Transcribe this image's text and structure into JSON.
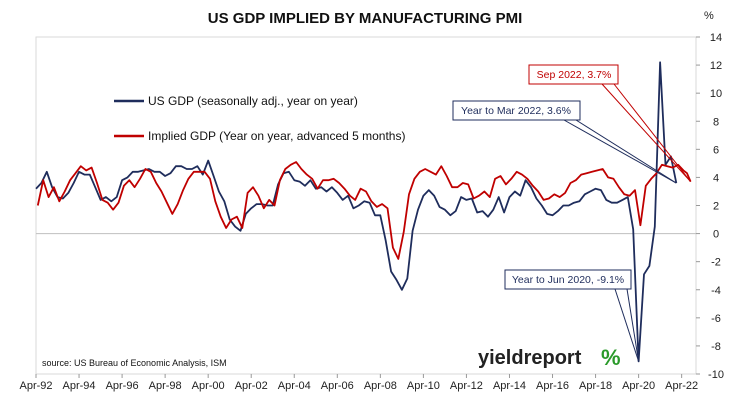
{
  "chart_data": {
    "type": "line",
    "title": "US GDP IMPLIED BY MANUFACTURING PMI",
    "y_unit": "%",
    "ylim": [
      -10,
      14
    ],
    "yticks": [
      14,
      12,
      10,
      8,
      6,
      4,
      2,
      0,
      -2,
      -4,
      -6,
      -8,
      -10
    ],
    "xticks": [
      "Apr-92",
      "Apr-94",
      "Apr-96",
      "Apr-98",
      "Apr-00",
      "Apr-02",
      "Apr-04",
      "Apr-06",
      "Apr-08",
      "Apr-10",
      "Apr-12",
      "Apr-14",
      "Apr-16",
      "Apr-18",
      "Apr-20",
      "Apr-22"
    ],
    "x_start": "1992-04",
    "x_end": "2022-12",
    "grid": false,
    "legend_position": "top-left",
    "source": "source: US Bureau of Economic Analysis, ISM",
    "brand": "yieldreport",
    "brand_symbol": "%",
    "series": [
      {
        "name": "US GDP (seasonally adj., year on year)",
        "color": "#1f2d5c",
        "points": [
          [
            "1992-04",
            3.2
          ],
          [
            "1992-07",
            3.6
          ],
          [
            "1992-10",
            4.4
          ],
          [
            "1993-01",
            3.3
          ],
          [
            "1993-04",
            2.6
          ],
          [
            "1993-07",
            2.5
          ],
          [
            "1993-10",
            2.9
          ],
          [
            "1994-01",
            3.6
          ],
          [
            "1994-04",
            4.4
          ],
          [
            "1994-07",
            4.2
          ],
          [
            "1994-10",
            4.2
          ],
          [
            "1995-01",
            3.3
          ],
          [
            "1995-04",
            2.4
          ],
          [
            "1995-07",
            2.6
          ],
          [
            "1995-10",
            2.3
          ],
          [
            "1996-01",
            2.6
          ],
          [
            "1996-04",
            3.8
          ],
          [
            "1996-07",
            4.0
          ],
          [
            "1996-10",
            4.4
          ],
          [
            "1997-01",
            4.4
          ],
          [
            "1997-04",
            4.5
          ],
          [
            "1997-07",
            4.6
          ],
          [
            "1997-10",
            4.4
          ],
          [
            "1998-01",
            4.4
          ],
          [
            "1998-04",
            4.1
          ],
          [
            "1998-07",
            4.3
          ],
          [
            "1998-10",
            4.8
          ],
          [
            "1999-01",
            4.8
          ],
          [
            "1999-04",
            4.6
          ],
          [
            "1999-07",
            4.6
          ],
          [
            "1999-10",
            4.8
          ],
          [
            "2000-01",
            4.2
          ],
          [
            "2000-04",
            5.2
          ],
          [
            "2000-07",
            4.1
          ],
          [
            "2000-10",
            3.0
          ],
          [
            "2001-01",
            2.3
          ],
          [
            "2001-04",
            1.0
          ],
          [
            "2001-07",
            0.5
          ],
          [
            "2001-10",
            0.2
          ],
          [
            "2002-01",
            1.4
          ],
          [
            "2002-04",
            1.8
          ],
          [
            "2002-07",
            2.1
          ],
          [
            "2002-10",
            2.1
          ],
          [
            "2003-01",
            2.0
          ],
          [
            "2003-04",
            2.0
          ],
          [
            "2003-07",
            3.5
          ],
          [
            "2003-10",
            4.3
          ],
          [
            "2004-01",
            4.4
          ],
          [
            "2004-04",
            3.8
          ],
          [
            "2004-07",
            3.7
          ],
          [
            "2004-10",
            3.4
          ],
          [
            "2005-01",
            3.8
          ],
          [
            "2005-04",
            3.2
          ],
          [
            "2005-07",
            3.3
          ],
          [
            "2005-10",
            3.0
          ],
          [
            "2006-01",
            3.3
          ],
          [
            "2006-04",
            2.9
          ],
          [
            "2006-07",
            2.4
          ],
          [
            "2006-10",
            2.7
          ],
          [
            "2007-01",
            1.8
          ],
          [
            "2007-04",
            2.0
          ],
          [
            "2007-07",
            2.3
          ],
          [
            "2007-10",
            2.2
          ],
          [
            "2008-01",
            1.3
          ],
          [
            "2008-04",
            1.3
          ],
          [
            "2008-07",
            -0.5
          ],
          [
            "2008-10",
            -2.7
          ],
          [
            "2009-01",
            -3.3
          ],
          [
            "2009-04",
            -4.0
          ],
          [
            "2009-07",
            -3.2
          ],
          [
            "2009-10",
            0.2
          ],
          [
            "2010-01",
            1.7
          ],
          [
            "2010-04",
            2.7
          ],
          [
            "2010-07",
            3.1
          ],
          [
            "2010-10",
            2.7
          ],
          [
            "2011-01",
            1.9
          ],
          [
            "2011-04",
            1.7
          ],
          [
            "2011-07",
            1.3
          ],
          [
            "2011-10",
            1.6
          ],
          [
            "2012-01",
            2.6
          ],
          [
            "2012-04",
            2.4
          ],
          [
            "2012-07",
            2.5
          ],
          [
            "2012-10",
            1.5
          ],
          [
            "2013-01",
            1.6
          ],
          [
            "2013-04",
            1.2
          ],
          [
            "2013-07",
            1.7
          ],
          [
            "2013-10",
            2.6
          ],
          [
            "2014-01",
            1.5
          ],
          [
            "2014-04",
            2.6
          ],
          [
            "2014-07",
            3.0
          ],
          [
            "2014-10",
            2.7
          ],
          [
            "2015-01",
            3.8
          ],
          [
            "2015-04",
            3.3
          ],
          [
            "2015-07",
            2.5
          ],
          [
            "2015-10",
            2.0
          ],
          [
            "2016-01",
            1.4
          ],
          [
            "2016-04",
            1.3
          ],
          [
            "2016-07",
            1.6
          ],
          [
            "2016-10",
            2.0
          ],
          [
            "2017-01",
            2.0
          ],
          [
            "2017-04",
            2.2
          ],
          [
            "2017-07",
            2.3
          ],
          [
            "2017-10",
            2.8
          ],
          [
            "2018-01",
            3.0
          ],
          [
            "2018-04",
            3.2
          ],
          [
            "2018-07",
            3.1
          ],
          [
            "2018-10",
            2.4
          ],
          [
            "2019-01",
            2.2
          ],
          [
            "2019-04",
            2.2
          ],
          [
            "2019-07",
            2.4
          ],
          [
            "2019-10",
            2.6
          ],
          [
            "2020-01",
            0.3
          ],
          [
            "2020-04",
            -9.1
          ],
          [
            "2020-07",
            -2.9
          ],
          [
            "2020-10",
            -2.3
          ],
          [
            "2021-01",
            0.5
          ],
          [
            "2021-04",
            12.2
          ],
          [
            "2021-07",
            4.9
          ],
          [
            "2021-10",
            5.5
          ],
          [
            "2022-01",
            3.6
          ]
        ]
      },
      {
        "name": "Implied GDP (Year on year, advanced 5 months)",
        "color": "#c00000",
        "points": [
          [
            "1992-05",
            2.0
          ],
          [
            "1992-08",
            3.8
          ],
          [
            "1992-11",
            2.6
          ],
          [
            "1993-02",
            3.3
          ],
          [
            "1993-05",
            2.3
          ],
          [
            "1993-08",
            3.0
          ],
          [
            "1993-11",
            3.8
          ],
          [
            "1994-02",
            4.3
          ],
          [
            "1994-05",
            4.8
          ],
          [
            "1994-08",
            4.5
          ],
          [
            "1994-11",
            4.7
          ],
          [
            "1995-02",
            3.6
          ],
          [
            "1995-05",
            2.4
          ],
          [
            "1995-08",
            2.2
          ],
          [
            "1995-11",
            1.7
          ],
          [
            "1996-02",
            2.2
          ],
          [
            "1996-05",
            3.4
          ],
          [
            "1996-08",
            3.8
          ],
          [
            "1996-11",
            3.3
          ],
          [
            "1997-02",
            3.9
          ],
          [
            "1997-05",
            4.6
          ],
          [
            "1997-08",
            4.4
          ],
          [
            "1997-11",
            3.6
          ],
          [
            "1998-02",
            3.0
          ],
          [
            "1998-05",
            2.2
          ],
          [
            "1998-08",
            1.4
          ],
          [
            "1998-11",
            2.1
          ],
          [
            "1999-02",
            3.1
          ],
          [
            "1999-05",
            3.9
          ],
          [
            "1999-08",
            4.4
          ],
          [
            "1999-11",
            4.4
          ],
          [
            "2000-02",
            4.4
          ],
          [
            "2000-05",
            3.9
          ],
          [
            "2000-08",
            2.3
          ],
          [
            "2000-11",
            1.2
          ],
          [
            "2001-02",
            0.4
          ],
          [
            "2001-05",
            1.0
          ],
          [
            "2001-08",
            1.2
          ],
          [
            "2001-11",
            0.4
          ],
          [
            "2002-02",
            2.9
          ],
          [
            "2002-05",
            3.3
          ],
          [
            "2002-08",
            2.7
          ],
          [
            "2002-11",
            1.8
          ],
          [
            "2003-02",
            2.4
          ],
          [
            "2003-05",
            2.0
          ],
          [
            "2003-08",
            3.8
          ],
          [
            "2003-11",
            4.6
          ],
          [
            "2004-02",
            4.9
          ],
          [
            "2004-05",
            5.1
          ],
          [
            "2004-08",
            4.6
          ],
          [
            "2004-11",
            4.2
          ],
          [
            "2005-02",
            3.9
          ],
          [
            "2005-05",
            3.2
          ],
          [
            "2005-08",
            3.8
          ],
          [
            "2005-11",
            3.8
          ],
          [
            "2006-02",
            3.9
          ],
          [
            "2006-05",
            3.6
          ],
          [
            "2006-08",
            3.2
          ],
          [
            "2006-11",
            2.7
          ],
          [
            "2007-02",
            2.4
          ],
          [
            "2007-05",
            3.2
          ],
          [
            "2007-08",
            3.0
          ],
          [
            "2007-11",
            2.3
          ],
          [
            "2008-02",
            1.9
          ],
          [
            "2008-05",
            2.1
          ],
          [
            "2008-08",
            1.8
          ],
          [
            "2008-11",
            -1.0
          ],
          [
            "2009-02",
            -1.8
          ],
          [
            "2009-05",
            0.1
          ],
          [
            "2009-08",
            2.8
          ],
          [
            "2009-11",
            3.9
          ],
          [
            "2010-02",
            4.4
          ],
          [
            "2010-05",
            4.6
          ],
          [
            "2010-08",
            4.4
          ],
          [
            "2010-11",
            4.2
          ],
          [
            "2011-02",
            4.8
          ],
          [
            "2011-05",
            4.1
          ],
          [
            "2011-08",
            3.3
          ],
          [
            "2011-11",
            3.3
          ],
          [
            "2012-02",
            3.6
          ],
          [
            "2012-05",
            3.5
          ],
          [
            "2012-08",
            2.5
          ],
          [
            "2012-11",
            2.7
          ],
          [
            "2013-02",
            3.0
          ],
          [
            "2013-05",
            2.6
          ],
          [
            "2013-08",
            3.9
          ],
          [
            "2013-11",
            4.1
          ],
          [
            "2014-02",
            3.5
          ],
          [
            "2014-05",
            3.9
          ],
          [
            "2014-08",
            4.4
          ],
          [
            "2014-11",
            4.2
          ],
          [
            "2015-02",
            3.9
          ],
          [
            "2015-05",
            3.4
          ],
          [
            "2015-08",
            3.0
          ],
          [
            "2015-11",
            2.4
          ],
          [
            "2016-02",
            2.5
          ],
          [
            "2016-05",
            2.8
          ],
          [
            "2016-08",
            2.6
          ],
          [
            "2016-11",
            2.9
          ],
          [
            "2017-02",
            3.6
          ],
          [
            "2017-05",
            3.8
          ],
          [
            "2017-08",
            4.2
          ],
          [
            "2017-11",
            4.3
          ],
          [
            "2018-02",
            4.4
          ],
          [
            "2018-05",
            4.5
          ],
          [
            "2018-08",
            4.6
          ],
          [
            "2018-11",
            4.0
          ],
          [
            "2019-02",
            3.9
          ],
          [
            "2019-05",
            3.3
          ],
          [
            "2019-08",
            2.8
          ],
          [
            "2019-11",
            2.7
          ],
          [
            "2020-02",
            3.1
          ],
          [
            "2020-05",
            0.6
          ],
          [
            "2020-08",
            3.4
          ],
          [
            "2020-11",
            3.9
          ],
          [
            "2021-02",
            4.3
          ],
          [
            "2021-05",
            4.9
          ],
          [
            "2021-08",
            4.8
          ],
          [
            "2021-11",
            4.7
          ],
          [
            "2022-02",
            4.9
          ],
          [
            "2022-05",
            4.5
          ],
          [
            "2022-07",
            4.3
          ],
          [
            "2022-09",
            3.7
          ]
        ]
      }
    ],
    "annotations": [
      {
        "text": "Sep 2022, 3.7%",
        "series": 1,
        "at": [
          "2022-09",
          3.7
        ],
        "color": "#c00000"
      },
      {
        "text": "Year to Mar 2022, 3.6%",
        "series": 0,
        "at": [
          "2022-01",
          3.6
        ],
        "color": "#1f2d5c"
      },
      {
        "text": "Year to Jun 2020, -9.1%",
        "series": 0,
        "at": [
          "2020-04",
          -9.1
        ],
        "color": "#1f2d5c"
      }
    ]
  }
}
